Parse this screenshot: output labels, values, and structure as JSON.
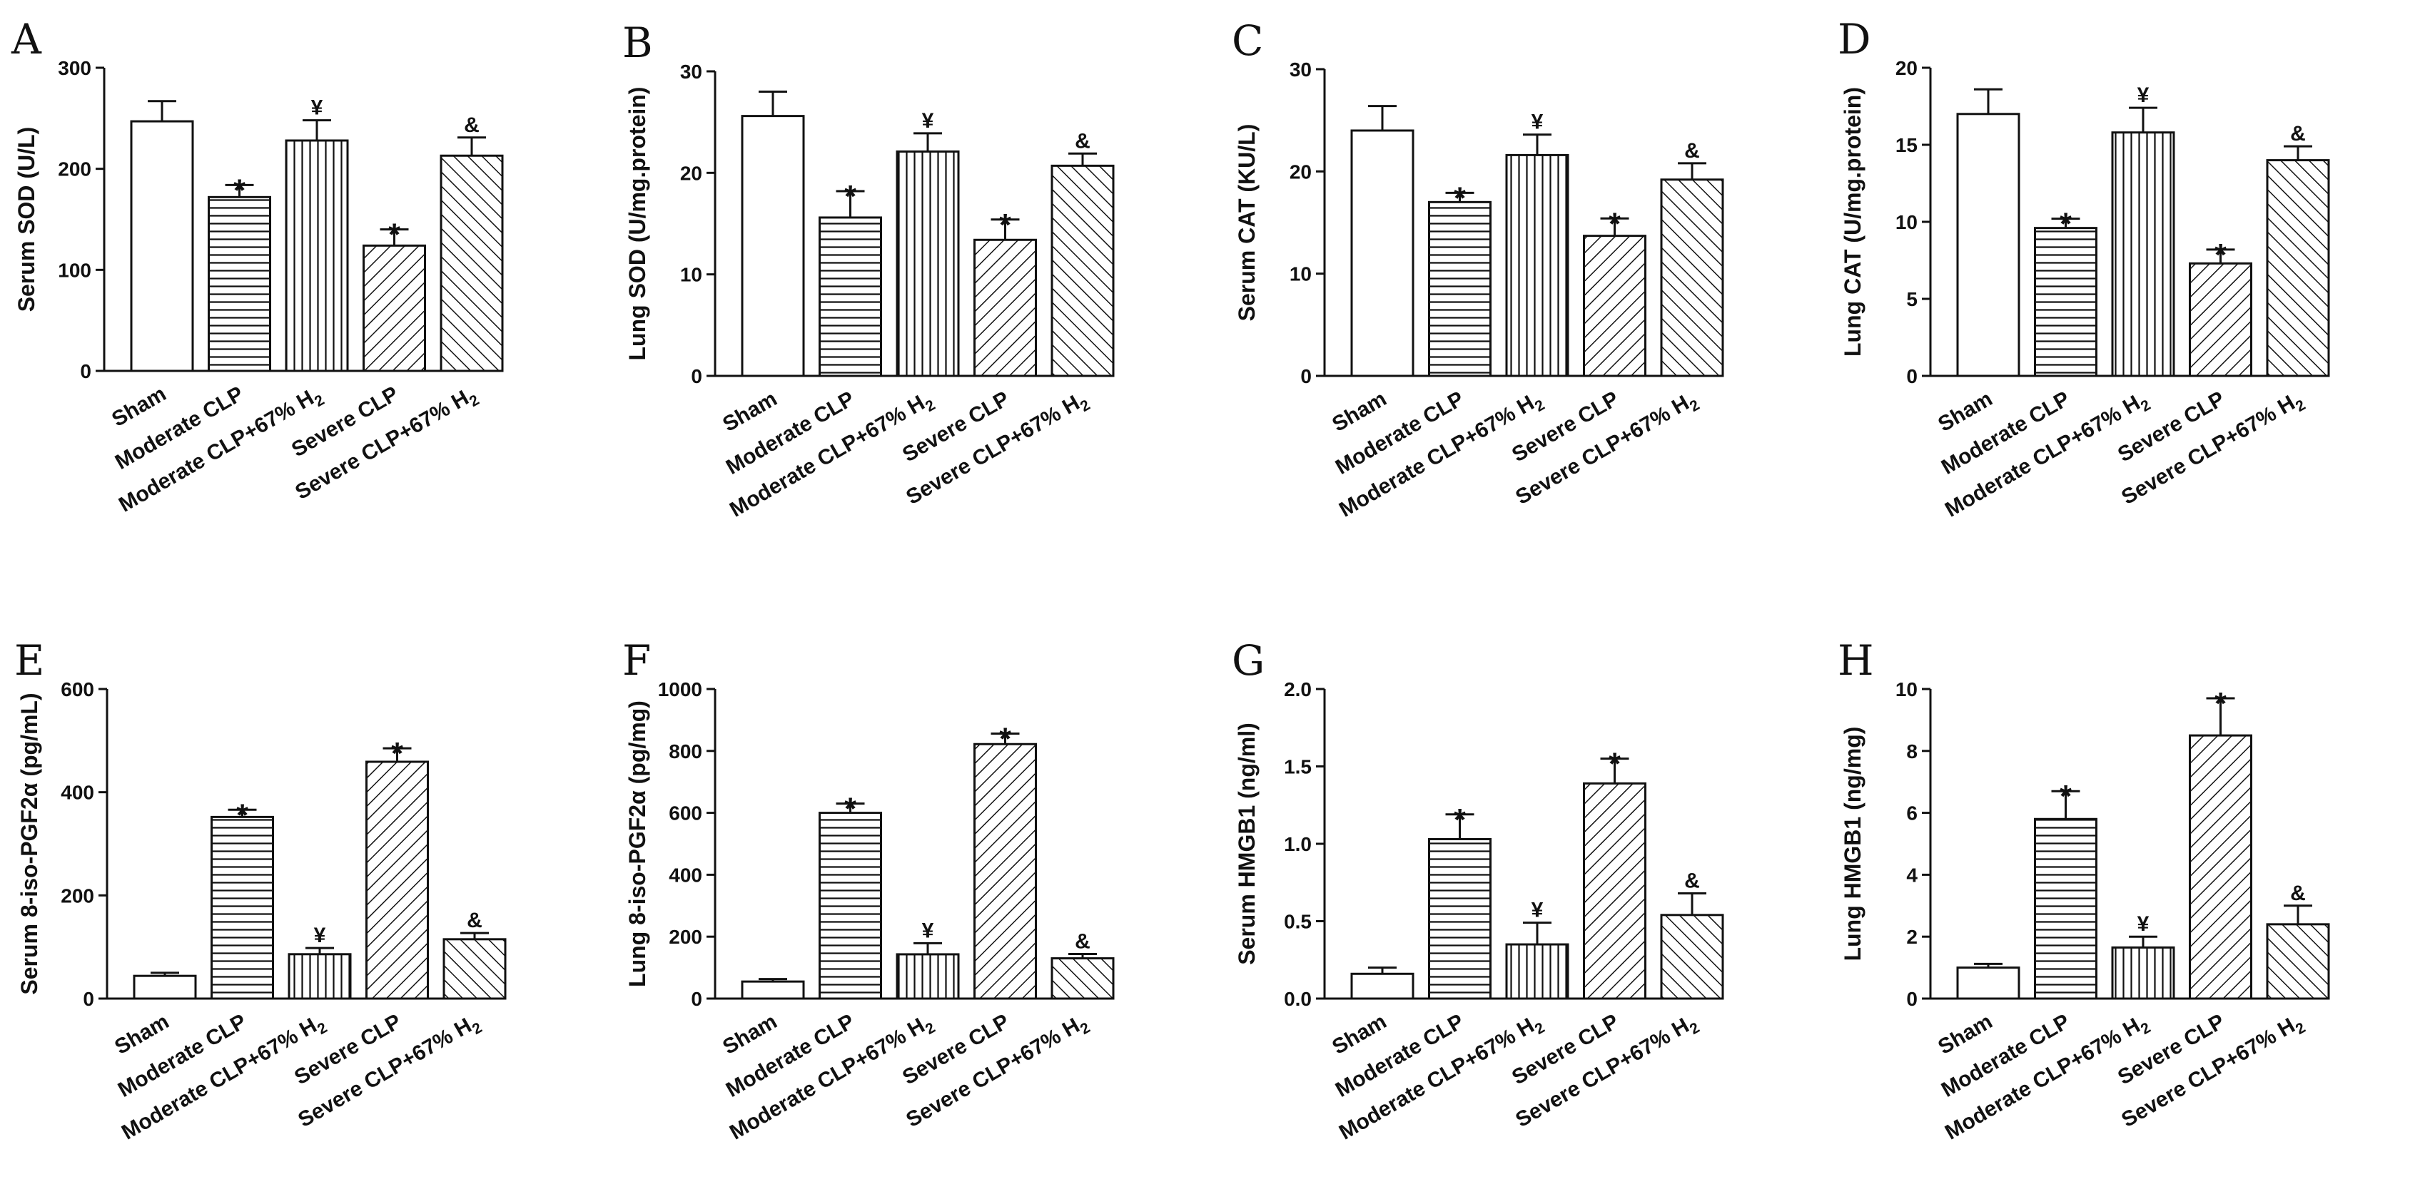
{
  "figure": {
    "x_categories": [
      "Sham",
      "Moderate CLP",
      "Moderate CLP+67% H",
      "Severe CLP",
      "Severe CLP+67% H"
    ],
    "x_subscripts": [
      "",
      "",
      "2",
      "",
      "2"
    ]
  },
  "chart_data": [
    {
      "type": "bar",
      "panel": "A",
      "ylabel": "Serum SOD (U/L)",
      "ylim": [
        0,
        300
      ],
      "yticks": [
        "0",
        "100",
        "200",
        "300"
      ],
      "categories": [
        "Sham",
        "Moderate CLP",
        "Moderate CLP+67% H2",
        "Severe CLP",
        "Severe CLP+67% H2"
      ],
      "values": [
        247,
        172,
        228,
        124,
        213
      ],
      "errors": [
        20,
        12,
        20,
        16,
        18
      ],
      "markers": [
        "",
        "*",
        "¥",
        "*",
        "&"
      ]
    },
    {
      "type": "bar",
      "panel": "B",
      "ylabel": "Lung SOD (U/mg.protein)",
      "ylim": [
        0,
        30
      ],
      "yticks": [
        "0",
        "10",
        "20",
        "30"
      ],
      "categories": [
        "Sham",
        "Moderate CLP",
        "Moderate CLP+67% H2",
        "Severe CLP",
        "Severe CLP+67% H2"
      ],
      "values": [
        25.6,
        15.6,
        22.1,
        13.4,
        20.7
      ],
      "errors": [
        2.4,
        2.6,
        1.8,
        2.0,
        1.2
      ],
      "markers": [
        "",
        "*",
        "¥",
        "*",
        "&"
      ]
    },
    {
      "type": "bar",
      "panel": "C",
      "ylabel": "Serum CAT (KU/L)",
      "ylim": [
        0,
        30
      ],
      "yticks": [
        "0",
        "10",
        "20",
        "30"
      ],
      "categories": [
        "Sham",
        "Moderate CLP",
        "Moderate CLP+67% H2",
        "Severe CLP",
        "Severe CLP+67% H2"
      ],
      "values": [
        24.0,
        17.0,
        21.6,
        13.7,
        19.2
      ],
      "errors": [
        2.4,
        0.9,
        2.0,
        1.7,
        1.6
      ],
      "markers": [
        "",
        "*",
        "¥",
        "*",
        "&"
      ]
    },
    {
      "type": "bar",
      "panel": "D",
      "ylabel": "Lung CAT (U/mg.protein)",
      "ylim": [
        0,
        20
      ],
      "yticks": [
        "0",
        "5",
        "10",
        "15",
        "20"
      ],
      "categories": [
        "Sham",
        "Moderate CLP",
        "Moderate CLP+67% H2",
        "Severe CLP",
        "Severe CLP+67% H2"
      ],
      "values": [
        17.0,
        9.6,
        15.8,
        7.3,
        14.0
      ],
      "errors": [
        1.6,
        0.6,
        1.6,
        0.9,
        0.9
      ],
      "markers": [
        "",
        "*",
        "¥",
        "*",
        "&"
      ]
    },
    {
      "type": "bar",
      "panel": "E",
      "ylabel": "Serum 8-iso-PGF2α (pg/mL)",
      "ylim": [
        0,
        600
      ],
      "yticks": [
        "0",
        "200",
        "400",
        "600"
      ],
      "categories": [
        "Sham",
        "Moderate CLP",
        "Moderate CLP+67% H2",
        "Severe CLP",
        "Severe CLP+67% H2"
      ],
      "values": [
        44,
        352,
        86,
        459,
        115
      ],
      "errors": [
        6,
        14,
        12,
        26,
        12
      ],
      "markers": [
        "",
        "*",
        "¥",
        "*",
        "&"
      ]
    },
    {
      "type": "bar",
      "panel": "F",
      "ylabel": "Lung 8-iso-PGF2α (pg/mg)",
      "ylim": [
        0,
        1000
      ],
      "yticks": [
        "0",
        "200",
        "400",
        "600",
        "800",
        "1000"
      ],
      "categories": [
        "Sham",
        "Moderate CLP",
        "Moderate CLP+67% H2",
        "Severe CLP",
        "Severe CLP+67% H2"
      ],
      "values": [
        55,
        600,
        143,
        822,
        130
      ],
      "errors": [
        8,
        30,
        36,
        34,
        14
      ],
      "markers": [
        "",
        "*",
        "¥",
        "*",
        "&"
      ]
    },
    {
      "type": "bar",
      "panel": "G",
      "ylabel": "Serum HMGB1 (ng/ml)",
      "ylim": [
        0,
        2.0
      ],
      "yticks": [
        "0.0",
        "0.5",
        "1.0",
        "1.5",
        "2.0"
      ],
      "categories": [
        "Sham",
        "Moderate CLP",
        "Moderate CLP+67% H2",
        "Severe CLP",
        "Severe CLP+67% H2"
      ],
      "values": [
        0.16,
        1.03,
        0.35,
        1.39,
        0.54
      ],
      "errors": [
        0.04,
        0.16,
        0.14,
        0.16,
        0.14
      ],
      "markers": [
        "",
        "*",
        "¥",
        "*",
        "&"
      ]
    },
    {
      "type": "bar",
      "panel": "H",
      "ylabel": "Lung HMGB1 (ng/mg)",
      "ylim": [
        0,
        10
      ],
      "yticks": [
        "0",
        "2",
        "4",
        "6",
        "8",
        "10"
      ],
      "categories": [
        "Sham",
        "Moderate CLP",
        "Moderate CLP+67% H2",
        "Severe CLP",
        "Severe CLP+67% H2"
      ],
      "values": [
        1.0,
        5.8,
        1.65,
        8.5,
        2.4
      ],
      "errors": [
        0.12,
        0.9,
        0.35,
        1.2,
        0.6
      ],
      "markers": [
        "",
        "*",
        "¥",
        "*",
        "&"
      ]
    }
  ]
}
